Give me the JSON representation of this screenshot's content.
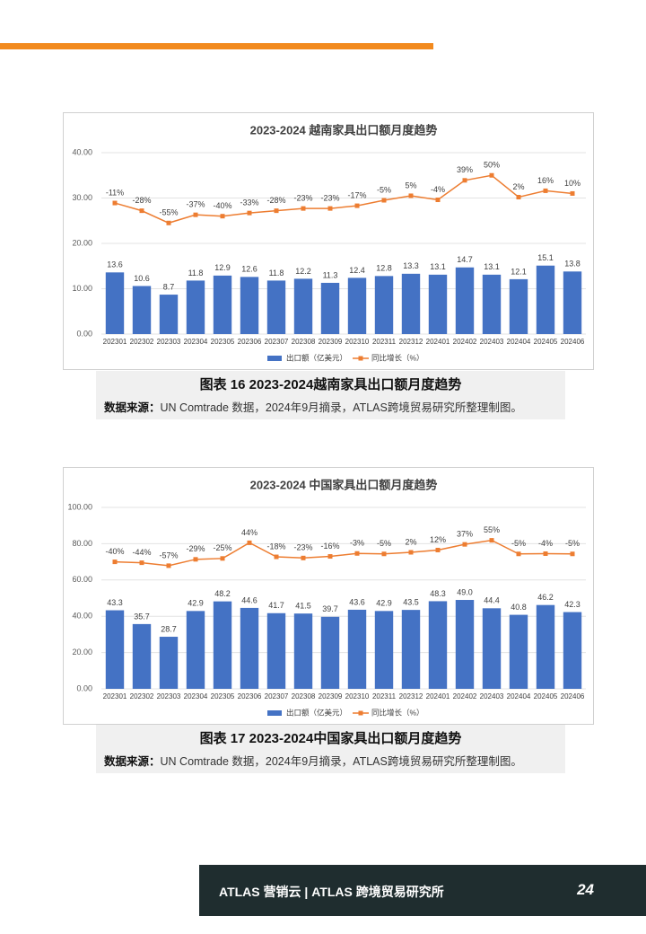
{
  "chart_data": [
    {
      "type": "combo",
      "title": "2023-2024 越南家具出口额月度趋势",
      "categories": [
        "202301",
        "202302",
        "202303",
        "202304",
        "202305",
        "202306",
        "202307",
        "202308",
        "202309",
        "202310",
        "202311",
        "202312",
        "202401",
        "202402",
        "202403",
        "202404",
        "202405",
        "202406"
      ],
      "series": [
        {
          "name": "出口额（亿美元）",
          "type": "bar",
          "color": "#4472c4",
          "values": [
            13.6,
            10.6,
            8.7,
            11.8,
            12.9,
            12.6,
            11.8,
            12.2,
            11.3,
            12.4,
            12.8,
            13.3,
            13.1,
            14.7,
            13.1,
            12.1,
            15.1,
            13.8
          ]
        },
        {
          "name": "同比增长（%）",
          "type": "line",
          "axis": "y2",
          "color": "#ed7d31",
          "values": [
            -11,
            -28,
            -55,
            -37,
            -40,
            -33,
            -28,
            -23,
            -23,
            -17,
            -5,
            5,
            -4,
            39,
            50,
            2,
            16,
            10
          ],
          "value_labels": [
            "-11%",
            "-28%",
            "-55%",
            "-37%",
            "-40%",
            "-33%",
            "-28%",
            "-23%",
            "-23%",
            "-17%",
            "-5%",
            "5%",
            "-4%",
            "39%",
            "50%",
            "2%",
            "16%",
            "10%"
          ]
        }
      ],
      "ylim": [
        0,
        40
      ],
      "yticks": [
        {
          "value": 0,
          "label": "0.00"
        },
        {
          "value": 10,
          "label": "10.00"
        },
        {
          "value": 20,
          "label": "20.00"
        },
        {
          "value": 30,
          "label": "30.00"
        },
        {
          "value": 40,
          "label": "40.00"
        }
      ],
      "y2lim": [
        -300,
        100
      ],
      "grid": true,
      "legend": "bottom"
    },
    {
      "type": "combo",
      "title": "2023-2024 中国家具出口额月度趋势",
      "categories": [
        "202301",
        "202302",
        "202303",
        "202304",
        "202305",
        "202306",
        "202307",
        "202308",
        "202309",
        "202310",
        "202311",
        "202312",
        "202401",
        "202402",
        "202403",
        "202404",
        "202405",
        "202406"
      ],
      "series": [
        {
          "name": "出口额（亿美元）",
          "type": "bar",
          "color": "#4472c4",
          "values": [
            43.3,
            35.7,
            28.7,
            42.9,
            48.2,
            44.6,
            41.7,
            41.5,
            39.7,
            43.6,
            42.9,
            43.5,
            48.3,
            49,
            44.4,
            40.8,
            46.2,
            42.3
          ],
          "value_labels": [
            "43.3",
            "35.7",
            "28.7",
            "42.9",
            "48.2",
            "44.6",
            "41.7",
            "41.5",
            "39.7",
            "43.6",
            "42.9",
            "43.5",
            "48.3",
            "49.0",
            "44.4",
            "40.8",
            "46.2",
            "42.3"
          ]
        },
        {
          "name": "同比增长（%）",
          "type": "line",
          "axis": "y2",
          "color": "#ed7d31",
          "values": [
            -40,
            -44,
            -57,
            -29,
            -25,
            44,
            -18,
            -23,
            -16,
            -3,
            -5,
            2,
            12,
            37,
            55,
            -5,
            -4,
            -5
          ],
          "value_labels": [
            "-40%",
            "-44%",
            "-57%",
            "-29%",
            "-25%",
            "44%",
            "-18%",
            "-23%",
            "-16%",
            "-3%",
            "-5%",
            "2%",
            "12%",
            "37%",
            "55%",
            "-5%",
            "-4%",
            "-5%"
          ]
        }
      ],
      "ylim": [
        0,
        100
      ],
      "yticks": [
        {
          "value": 0,
          "label": "0.00"
        },
        {
          "value": 20,
          "label": "20.00"
        },
        {
          "value": 40,
          "label": "40.00"
        },
        {
          "value": 60,
          "label": "60.00"
        },
        {
          "value": 80,
          "label": "80.00"
        },
        {
          "value": 100,
          "label": "100.00"
        }
      ],
      "y2lim": [
        -600,
        200
      ],
      "grid": true,
      "legend": "bottom"
    }
  ],
  "captions": [
    {
      "title": "图表 16 2023-2024越南家具出口额月度趋势",
      "source_label": "数据来源：",
      "source_text": "UN Comtrade 数据，2024年9月摘录，ATLAS跨境贸易研究所整理制图。"
    },
    {
      "title": "图表 17 2023-2024中国家具出口额月度趋势",
      "source_label": "数据来源：",
      "source_text": "UN Comtrade 数据，2024年9月摘录，ATLAS跨境贸易研究所整理制图。"
    }
  ],
  "footer": {
    "brand": "ATLAS 营销云 | ATLAS 跨境贸易研究所",
    "page": "24"
  }
}
